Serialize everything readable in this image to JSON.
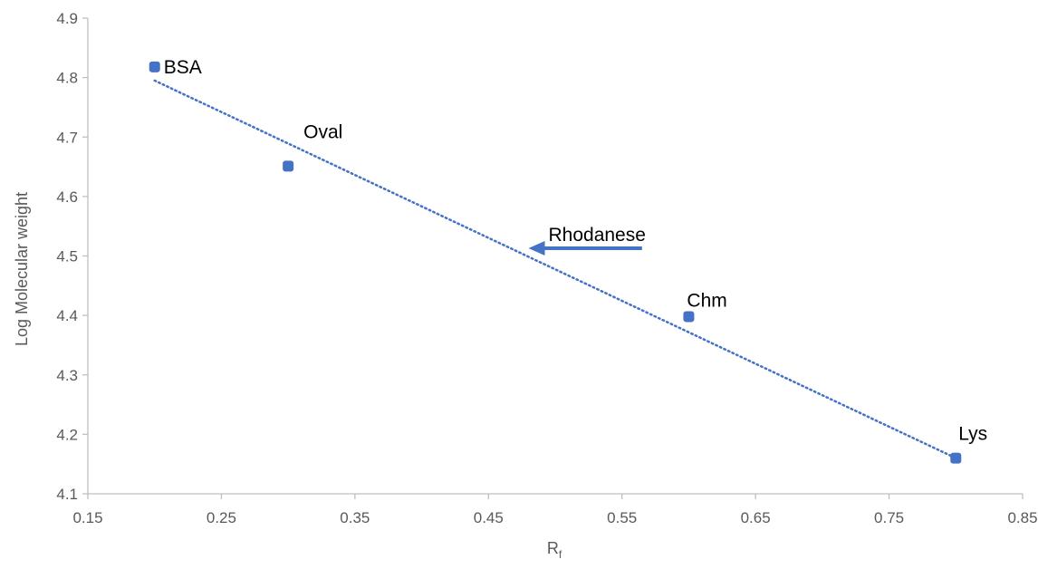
{
  "chart_data": {
    "type": "scatter",
    "xlabel": "R",
    "xlabel_subscript": "f",
    "ylabel": "Log  Molecular weight",
    "xlim": [
      0.15,
      0.85
    ],
    "ylim": [
      4.1,
      4.9
    ],
    "x_ticks": [
      "0.15",
      "0.25",
      "0.35",
      "0.45",
      "0.55",
      "0.65",
      "0.75",
      "0.85"
    ],
    "y_ticks": [
      "4.1",
      "4.2",
      "4.3",
      "4.4",
      "4.5",
      "4.6",
      "4.7",
      "4.8",
      "4.9"
    ],
    "grid": false,
    "series": [
      {
        "points": [
          {
            "label": "BSA",
            "x": 0.2,
            "y": 4.818
          },
          {
            "label": "Oval",
            "x": 0.3,
            "y": 4.651
          },
          {
            "label": "Chm",
            "x": 0.6,
            "y": 4.398
          },
          {
            "label": "Lys",
            "x": 0.8,
            "y": 4.16
          }
        ]
      }
    ],
    "trendline": {
      "style": "dotted",
      "from": {
        "x": 0.2,
        "y": 4.795
      },
      "to": {
        "x": 0.8,
        "y": 4.16
      }
    },
    "annotations": [
      {
        "text": "Rhodanese",
        "arrow_from": {
          "x": 0.565,
          "y": 4.513
        },
        "arrow_to": {
          "x": 0.48,
          "y": 4.513
        }
      }
    ],
    "colors": {
      "marker": "#4472c4",
      "trendline": "#4472c4",
      "arrow": "#4472c4",
      "axis": "#bfbfbf"
    }
  }
}
